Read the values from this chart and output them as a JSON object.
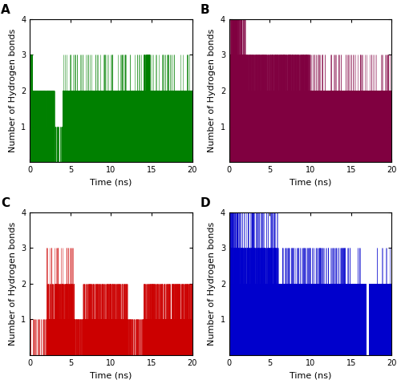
{
  "figsize": [
    5.0,
    4.79
  ],
  "dpi": 100,
  "panels": [
    "A",
    "B",
    "C",
    "D"
  ],
  "colors": {
    "A": "#008000",
    "B": "#800040",
    "C": "#CC0000",
    "D": "#0000CC"
  },
  "xlim": [
    0,
    20
  ],
  "ylim": [
    0,
    4
  ],
  "yticks": [
    1,
    2,
    3,
    4
  ],
  "xlabel": "Time (ns)",
  "ylabel": "Number of Hydrogen bonds",
  "n_points": 4000,
  "label_fontsize": 8,
  "panel_label_fontsize": 11,
  "tick_fontsize": 7,
  "background_color": "#ffffff"
}
